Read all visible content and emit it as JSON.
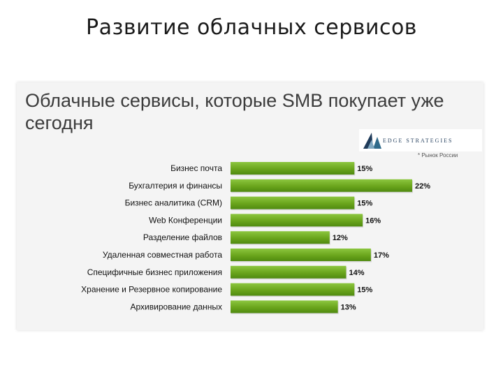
{
  "slide": {
    "title": "Развитие облачных сервисов"
  },
  "logo": {
    "text": "EDGE STRATEGIES"
  },
  "note": "* Рынок России",
  "colors": {
    "bar": "#6aa51c",
    "bar_light": "#8cc63f",
    "bar_dark": "#4f8a10"
  },
  "chart_data": {
    "type": "bar",
    "orientation": "horizontal",
    "title": "Облачные сервисы, которые SMB покупает уже сегодня",
    "categories": [
      "Бизнес почта",
      "Бухгалтерия и финансы",
      "Бизнес аналитика (CRM)",
      "Web Конференции",
      "Разделение файлов",
      "Удаленная совместная работа",
      "Специфичные бизнес приложения",
      "Хранение и Резервное копирование",
      "Архивирование данных"
    ],
    "values": [
      15,
      22,
      15,
      16,
      12,
      17,
      14,
      15,
      13
    ],
    "value_labels": [
      "15%",
      "22%",
      "15%",
      "16%",
      "12%",
      "17%",
      "14%",
      "15%",
      "13%"
    ],
    "xlim": [
      0,
      22
    ],
    "grid": false,
    "legend": "none"
  }
}
